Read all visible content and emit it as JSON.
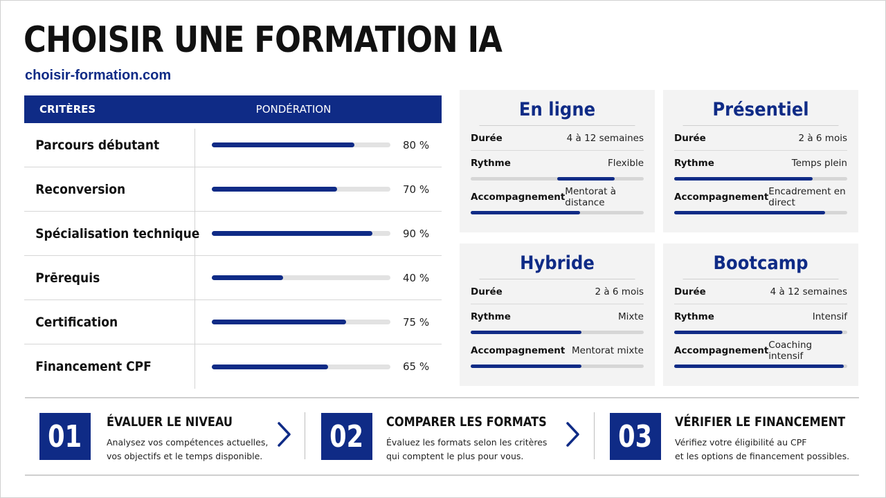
{
  "header": {
    "title": "CHOISIR UNE FORMATION IA",
    "site": "choisir-formation.com"
  },
  "criteria": {
    "col_criteria": "CRITÈRES",
    "col_weight": "PONDÉRATION",
    "rows": [
      {
        "label": "Parcours débutant",
        "value": "80 %",
        "fraction": 0.8
      },
      {
        "label": "Reconversion",
        "value": "70 %",
        "fraction": 0.7
      },
      {
        "label": "Spécialisation technique",
        "value": "90 %",
        "fraction": 0.9
      },
      {
        "label": "Prērequis",
        "value": "40 %",
        "fraction": 0.4
      },
      {
        "label": "Certification",
        "value": "75 %",
        "fraction": 0.75
      },
      {
        "label": "Financement CPF",
        "value": "65 %",
        "fraction": 0.65
      }
    ]
  },
  "formats": [
    {
      "title": "En ligne",
      "duree_label": "Durée",
      "duree": "4 à 12 semaines",
      "rythme_label": "Rythme",
      "rythme": "Flexible",
      "rythme_level": [
        0.5,
        0.83
      ],
      "accomp_label": "Accompagnement",
      "accomp": "Mentorat à distance",
      "accomp_level": [
        0,
        0.63
      ]
    },
    {
      "title": "Présentiel",
      "duree_label": "Durée",
      "duree": "2 à 6 mois",
      "rythme_label": "Rythme",
      "rythme": "Temps plein",
      "rythme_level": [
        0,
        0.8
      ],
      "accomp_label": "Accompagnement",
      "accomp": "Encadrement en direct",
      "accomp_level": [
        0,
        0.87
      ]
    },
    {
      "title": "Hybride",
      "duree_label": "Durée",
      "duree": "2 à 6 mois",
      "rythme_label": "Rythme",
      "rythme": "Mixte",
      "rythme_level": [
        0,
        0.64
      ],
      "accomp_label": "Accompagnement",
      "accomp": "Mentorat mixte",
      "accomp_level": [
        0,
        0.64
      ]
    },
    {
      "title": "Bootcamp",
      "duree_label": "Durée",
      "duree": "4 à 12 semaines",
      "rythme_label": "Rythme",
      "rythme": "Intensif",
      "rythme_level": [
        0,
        0.97
      ],
      "accomp_label": "Accompagnement",
      "accomp": "Coaching intensif",
      "accomp_level": [
        0,
        0.98
      ]
    }
  ],
  "steps": [
    {
      "num": "01",
      "title": "ÉVALUER LE NIVEAU",
      "line1": "Analysez vos compétences actuelles,",
      "line2": "vos objectifs et le temps disponible."
    },
    {
      "num": "02",
      "title": "COMPARER LES FORMATS",
      "line1": "Évaluez les formats selon les critères",
      "line2": "qui comptent le plus pour vous."
    },
    {
      "num": "03",
      "title": "VÉRIFIER LE FINANCEMENT",
      "line1": "Vérifiez votre éligibilité au CPF",
      "line2": "et les options de financement possibles."
    }
  ],
  "colors": {
    "accent": "#0f2b86",
    "track": "#e2e2e2",
    "card_bg": "#f3f3f3"
  },
  "icons": {
    "step_arrow": "chevron-right-icon"
  }
}
